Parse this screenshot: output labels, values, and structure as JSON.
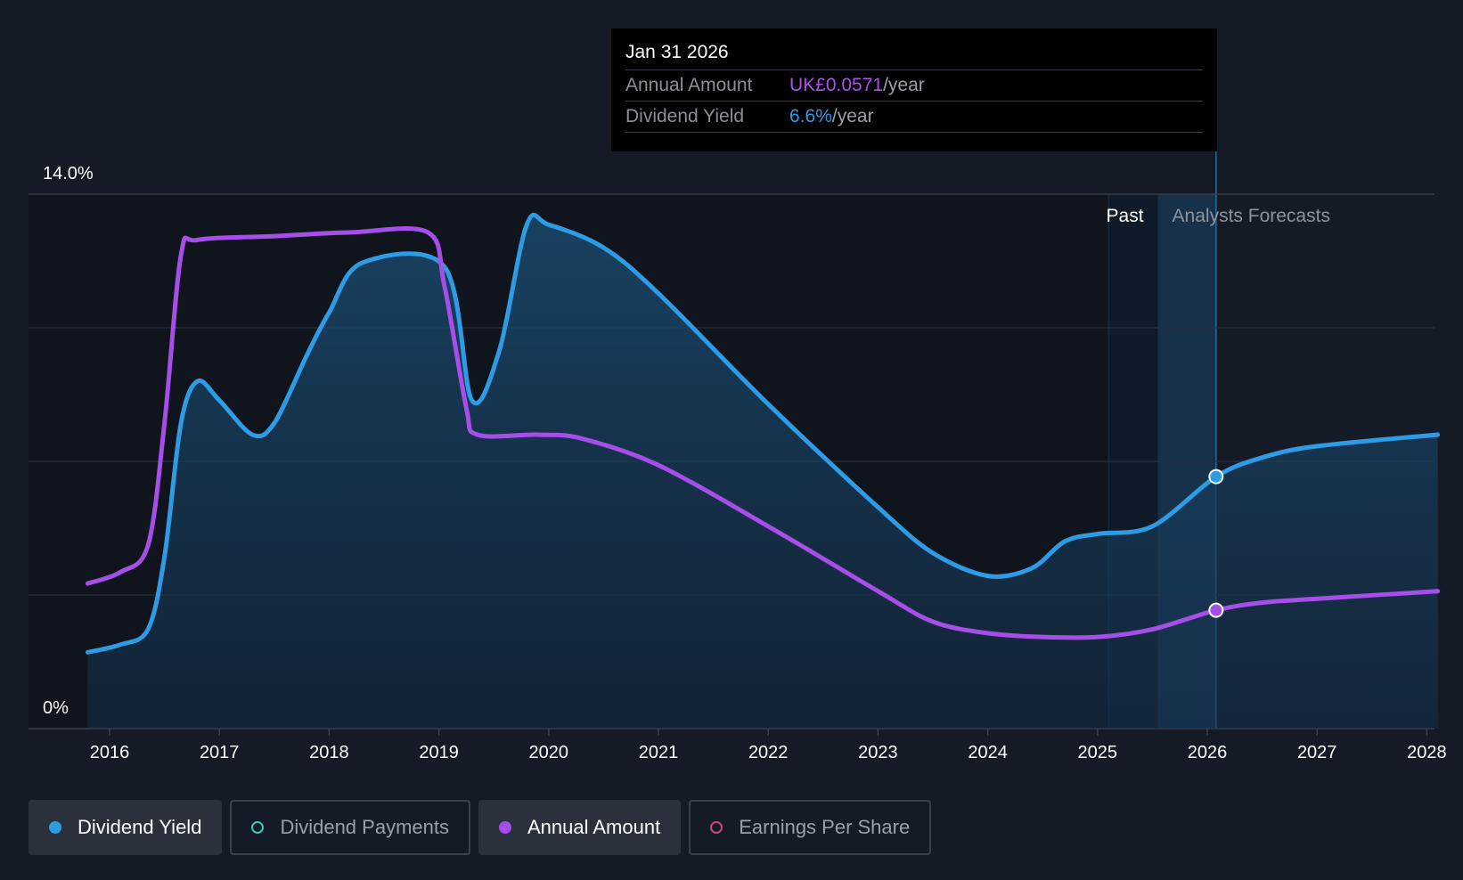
{
  "tooltip": {
    "date": "Jan 31 2026",
    "rows": [
      {
        "label": "Annual Amount",
        "value": "UK£0.0571",
        "unit": "/year"
      },
      {
        "label": "Dividend Yield",
        "value": "6.6%",
        "unit": "/year"
      }
    ]
  },
  "chart_data": {
    "type": "line",
    "y_axis": {
      "top_label": "14.0%",
      "bottom_label": "0%",
      "ylim": [
        0,
        14
      ]
    },
    "x_axis": {
      "ticks": [
        "2016",
        "2017",
        "2018",
        "2019",
        "2020",
        "2021",
        "2022",
        "2023",
        "2024",
        "2025",
        "2026",
        "2027",
        "2028"
      ]
    },
    "regions": {
      "past_label": "Past",
      "forecast_label": "Analysts Forecasts",
      "forecast_start": 2025.55,
      "past_band_start": 2025.1,
      "cursor": 2026.08
    },
    "series": [
      {
        "name": "Dividend Yield",
        "color": "#2e9be5",
        "filled": true,
        "points": [
          [
            2015.8,
            2.0
          ],
          [
            2016.1,
            2.2
          ],
          [
            2016.35,
            2.6
          ],
          [
            2016.5,
            4.5
          ],
          [
            2016.65,
            8.0
          ],
          [
            2016.8,
            9.1
          ],
          [
            2017.0,
            8.6
          ],
          [
            2017.3,
            7.7
          ],
          [
            2017.5,
            8.0
          ],
          [
            2017.8,
            9.8
          ],
          [
            2018.0,
            10.9
          ],
          [
            2018.3,
            12.2
          ],
          [
            2019.05,
            12.1
          ],
          [
            2019.3,
            8.6
          ],
          [
            2019.55,
            9.9
          ],
          [
            2019.8,
            13.2
          ],
          [
            2020.0,
            13.2
          ],
          [
            2020.5,
            12.6
          ],
          [
            2021.0,
            11.4
          ],
          [
            2022.0,
            8.5
          ],
          [
            2023.0,
            5.8
          ],
          [
            2023.5,
            4.6
          ],
          [
            2024.0,
            4.0
          ],
          [
            2024.4,
            4.2
          ],
          [
            2024.7,
            4.9
          ],
          [
            2025.0,
            5.1
          ],
          [
            2025.5,
            5.3
          ],
          [
            2026.08,
            6.6
          ],
          [
            2026.5,
            7.1
          ],
          [
            2027.0,
            7.4
          ],
          [
            2028.1,
            7.7
          ]
        ],
        "markers": [
          [
            2026.08,
            6.6
          ]
        ]
      },
      {
        "name": "Annual Amount",
        "color": "#a64ee8",
        "filled": false,
        "points": [
          [
            2015.8,
            3.8
          ],
          [
            2016.1,
            4.1
          ],
          [
            2016.35,
            4.8
          ],
          [
            2016.5,
            8.0
          ],
          [
            2016.65,
            12.4
          ],
          [
            2016.8,
            12.8
          ],
          [
            2017.5,
            12.9
          ],
          [
            2018.2,
            13.0
          ],
          [
            2018.9,
            13.0
          ],
          [
            2019.05,
            11.6
          ],
          [
            2019.25,
            8.4
          ],
          [
            2019.35,
            7.7
          ],
          [
            2019.9,
            7.7
          ],
          [
            2020.3,
            7.6
          ],
          [
            2021.0,
            6.9
          ],
          [
            2022.0,
            5.3
          ],
          [
            2023.0,
            3.6
          ],
          [
            2023.5,
            2.8
          ],
          [
            2024.0,
            2.5
          ],
          [
            2024.5,
            2.4
          ],
          [
            2025.0,
            2.4
          ],
          [
            2025.5,
            2.6
          ],
          [
            2026.08,
            3.1
          ],
          [
            2026.5,
            3.3
          ],
          [
            2027.0,
            3.4
          ],
          [
            2028.1,
            3.6
          ]
        ],
        "markers": [
          [
            2026.08,
            3.1
          ]
        ]
      }
    ]
  },
  "legend": [
    {
      "label": "Dividend Yield",
      "color": "#2e9be5",
      "active": true
    },
    {
      "label": "Dividend Payments",
      "color": "#3fc7b5",
      "active": false
    },
    {
      "label": "Annual Amount",
      "color": "#a64ee8",
      "active": true
    },
    {
      "label": "Earnings Per Share",
      "color": "#d0447c",
      "active": false
    }
  ]
}
